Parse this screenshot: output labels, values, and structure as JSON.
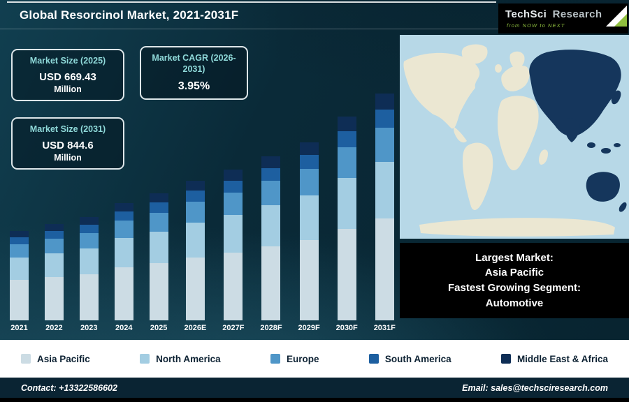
{
  "header": {
    "title": "Global Resorcinol Market, 2021-2031F",
    "logo": {
      "brand_primary": "TechSci",
      "brand_secondary": "Research",
      "tagline": "from NOW to NEXT"
    }
  },
  "stats": [
    {
      "label": "Market Size (2025)",
      "value": "USD 669.43",
      "unit": "Million"
    },
    {
      "label": "Market CAGR (2026-2031)",
      "value": "3.95%"
    },
    {
      "label": "Market Size (2031)",
      "value": "USD 844.6",
      "unit": "Million"
    }
  ],
  "info_box": {
    "lines": [
      "Largest Market:",
      "Asia Pacific",
      "Fastest Growing Segment:",
      "Automotive"
    ]
  },
  "footer": {
    "contact": "Contact: +13322586602",
    "email": "Email: sales@techsciresearch.com"
  },
  "theme": {
    "bg": "#0a2a38",
    "ocean": "#b7d8e7",
    "land": "#ebe7d2",
    "map_highlight": "#15365c",
    "stat_label": "#8fd9d9",
    "legend_text": "#0d2233",
    "footer_bg": "#0a2433"
  },
  "map": {
    "highlighted_region": "Asia Pacific"
  },
  "chart_data": {
    "type": "bar",
    "stacked": true,
    "title": "Global Resorcinol Market, 2021-2031F",
    "value_axis": "hidden (no axis or gridlines shown; values are relative visual heights)",
    "units": "relative height units",
    "legend_position": "bottom",
    "categories": [
      "2021",
      "2022",
      "2023",
      "2024",
      "2025",
      "2026E",
      "2027F",
      "2028F",
      "2029F",
      "2030F",
      "2031F"
    ],
    "series": [
      {
        "name": "Asia Pacific",
        "color": "#ccdce4",
        "values": [
          58,
          62,
          66,
          76,
          82,
          90,
          97,
          106,
          115,
          131,
          146
        ]
      },
      {
        "name": "North America",
        "color": "#a3cde2",
        "values": [
          32,
          34,
          37,
          42,
          45,
          50,
          54,
          59,
          64,
          73,
          81
        ]
      },
      {
        "name": "Europe",
        "color": "#4f96c8",
        "values": [
          19,
          21,
          22,
          25,
          27,
          30,
          32,
          35,
          38,
          44,
          49
        ]
      },
      {
        "name": "South America",
        "color": "#1d5fa0",
        "values": [
          10,
          11,
          12,
          13,
          15,
          16,
          17,
          18,
          20,
          23,
          26
        ]
      },
      {
        "name": "Middle East & Africa",
        "color": "#0e2d55",
        "values": [
          9,
          10,
          11,
          12,
          13,
          14,
          16,
          17,
          18,
          21,
          23
        ]
      }
    ],
    "known_values_from_callouts": {
      "market_size_2025_usd_million": 669.43,
      "market_size_2031_usd_million": 844.6,
      "cagr_2026_2031_percent": 3.95
    }
  }
}
